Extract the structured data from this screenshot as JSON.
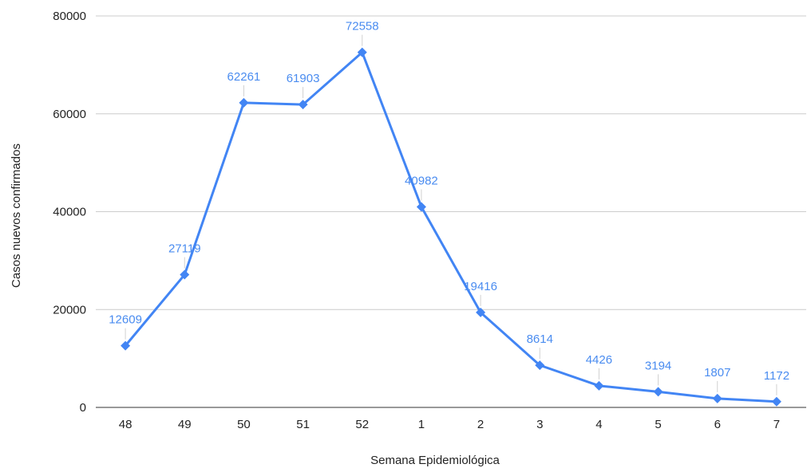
{
  "chart_data": {
    "type": "line",
    "title": "",
    "xlabel": "Semana Epidemiológica",
    "ylabel": "Casos nuevos confirmados",
    "categories": [
      "48",
      "49",
      "50",
      "51",
      "52",
      "1",
      "2",
      "3",
      "4",
      "5",
      "6",
      "7"
    ],
    "series": [
      {
        "values": [
          12609,
          27119,
          62261,
          61903,
          72558,
          40982,
          19416,
          8614,
          4426,
          3194,
          1807,
          1172
        ],
        "color": "#4285f4",
        "marker": "diamond"
      }
    ],
    "ylim": [
      0,
      80000
    ],
    "yticks": [
      0,
      20000,
      40000,
      60000,
      80000
    ],
    "grid": true,
    "legend": "none",
    "data_labels": true,
    "label_color": "#4a8cf0"
  }
}
